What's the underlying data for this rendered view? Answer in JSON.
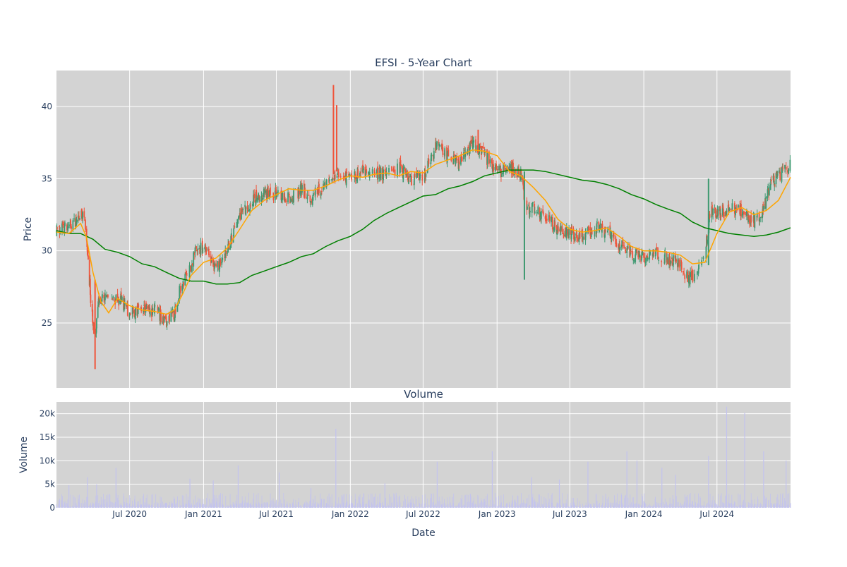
{
  "colors": {
    "plot_bg": "#d3d3d3",
    "grid": "#ffffff",
    "up": "#3d9970",
    "down": "#ef553b",
    "sma_short": "#ffa500",
    "sma_long": "#008000",
    "volume": "#c3c3ee",
    "text": "#2a3f5f"
  },
  "chart_data": [
    {
      "type": "candlestick",
      "title": "EFSI - 5-Year Chart",
      "ylabel": "Price",
      "ylim": [
        20.5,
        42.5
      ],
      "y_ticks": [
        25,
        30,
        35,
        40
      ],
      "grid": true,
      "x_range": [
        "2020-01-01",
        "2024-12-31"
      ],
      "x_ticks": [
        {
          "date": "2020-07-01",
          "label": "Jul 2020"
        },
        {
          "date": "2021-01-01",
          "label": "Jan 2021"
        },
        {
          "date": "2021-07-01",
          "label": "Jul 2021"
        },
        {
          "date": "2022-01-01",
          "label": "Jan 2022"
        },
        {
          "date": "2022-07-01",
          "label": "Jul 2022"
        },
        {
          "date": "2023-01-01",
          "label": "Jan 2023"
        },
        {
          "date": "2023-07-01",
          "label": "Jul 2023"
        },
        {
          "date": "2024-01-01",
          "label": "Jan 2024"
        },
        {
          "date": "2024-07-01",
          "label": "Jul 2024"
        }
      ],
      "sma_short": [
        [
          "2020-01-01",
          31.3
        ],
        [
          "2020-02-01",
          31.2
        ],
        [
          "2020-03-01",
          31.9
        ],
        [
          "2020-03-15",
          31.0
        ],
        [
          "2020-04-01",
          28.5
        ],
        [
          "2020-04-20",
          26.5
        ],
        [
          "2020-05-10",
          25.7
        ],
        [
          "2020-06-01",
          26.7
        ],
        [
          "2020-07-01",
          26.2
        ],
        [
          "2020-08-01",
          25.9
        ],
        [
          "2020-09-01",
          25.8
        ],
        [
          "2020-10-01",
          25.6
        ],
        [
          "2020-10-20",
          25.9
        ],
        [
          "2020-11-10",
          27.0
        ],
        [
          "2020-12-01",
          28.3
        ],
        [
          "2021-01-01",
          29.2
        ],
        [
          "2021-02-01",
          29.5
        ],
        [
          "2021-03-01",
          30.2
        ],
        [
          "2021-04-01",
          31.5
        ],
        [
          "2021-05-01",
          32.8
        ],
        [
          "2021-06-01",
          33.5
        ],
        [
          "2021-07-01",
          33.9
        ],
        [
          "2021-08-01",
          34.3
        ],
        [
          "2021-09-01",
          34.2
        ],
        [
          "2021-10-01",
          34.2
        ],
        [
          "2021-11-01",
          34.5
        ],
        [
          "2021-12-01",
          34.9
        ],
        [
          "2022-01-01",
          35.2
        ],
        [
          "2022-02-01",
          35.1
        ],
        [
          "2022-03-01",
          35.3
        ],
        [
          "2022-04-01",
          35.4
        ],
        [
          "2022-05-01",
          35.2
        ],
        [
          "2022-06-01",
          35.5
        ],
        [
          "2022-07-01",
          35.4
        ],
        [
          "2022-08-01",
          36.0
        ],
        [
          "2022-09-01",
          36.3
        ],
        [
          "2022-10-01",
          36.6
        ],
        [
          "2022-11-01",
          37.0
        ],
        [
          "2022-12-01",
          36.9
        ],
        [
          "2023-01-01",
          36.6
        ],
        [
          "2023-02-01",
          35.5
        ],
        [
          "2023-03-01",
          35.2
        ],
        [
          "2023-04-01",
          34.4
        ],
        [
          "2023-05-01",
          33.5
        ],
        [
          "2023-06-01",
          32.2
        ],
        [
          "2023-07-01",
          31.5
        ],
        [
          "2023-08-01",
          31.3
        ],
        [
          "2023-09-01",
          31.4
        ],
        [
          "2023-10-01",
          31.6
        ],
        [
          "2023-11-01",
          31.0
        ],
        [
          "2023-12-01",
          30.3
        ],
        [
          "2024-01-01",
          30.0
        ],
        [
          "2024-02-01",
          30.0
        ],
        [
          "2024-03-01",
          29.9
        ],
        [
          "2024-04-01",
          29.7
        ],
        [
          "2024-05-01",
          29.1
        ],
        [
          "2024-06-01",
          29.2
        ],
        [
          "2024-07-01",
          31.2
        ],
        [
          "2024-08-01",
          32.7
        ],
        [
          "2024-09-01",
          33.0
        ],
        [
          "2024-10-01",
          32.5
        ],
        [
          "2024-11-01",
          32.8
        ],
        [
          "2024-12-01",
          33.5
        ],
        [
          "2024-12-31",
          35.1
        ]
      ],
      "sma_long": [
        [
          "2020-01-01",
          31.4
        ],
        [
          "2020-02-01",
          31.2
        ],
        [
          "2020-03-01",
          31.2
        ],
        [
          "2020-04-01",
          30.8
        ],
        [
          "2020-05-01",
          30.1
        ],
        [
          "2020-06-01",
          29.9
        ],
        [
          "2020-07-01",
          29.6
        ],
        [
          "2020-08-01",
          29.1
        ],
        [
          "2020-09-01",
          28.9
        ],
        [
          "2020-10-01",
          28.5
        ],
        [
          "2020-11-01",
          28.1
        ],
        [
          "2020-12-01",
          27.9
        ],
        [
          "2021-01-01",
          27.9
        ],
        [
          "2021-02-01",
          27.7
        ],
        [
          "2021-03-01",
          27.7
        ],
        [
          "2021-04-01",
          27.8
        ],
        [
          "2021-05-01",
          28.3
        ],
        [
          "2021-06-01",
          28.6
        ],
        [
          "2021-07-01",
          28.9
        ],
        [
          "2021-08-01",
          29.2
        ],
        [
          "2021-09-01",
          29.6
        ],
        [
          "2021-10-01",
          29.8
        ],
        [
          "2021-11-01",
          30.3
        ],
        [
          "2021-12-01",
          30.7
        ],
        [
          "2022-01-01",
          31.0
        ],
        [
          "2022-02-01",
          31.5
        ],
        [
          "2022-03-01",
          32.1
        ],
        [
          "2022-04-01",
          32.6
        ],
        [
          "2022-05-01",
          33.0
        ],
        [
          "2022-06-01",
          33.4
        ],
        [
          "2022-07-01",
          33.8
        ],
        [
          "2022-08-01",
          33.9
        ],
        [
          "2022-09-01",
          34.3
        ],
        [
          "2022-10-01",
          34.5
        ],
        [
          "2022-11-01",
          34.8
        ],
        [
          "2022-12-01",
          35.2
        ],
        [
          "2023-01-01",
          35.4
        ],
        [
          "2023-02-01",
          35.6
        ],
        [
          "2023-03-01",
          35.6
        ],
        [
          "2023-04-01",
          35.6
        ],
        [
          "2023-05-01",
          35.5
        ],
        [
          "2023-06-01",
          35.3
        ],
        [
          "2023-07-01",
          35.1
        ],
        [
          "2023-08-01",
          34.9
        ],
        [
          "2023-09-01",
          34.8
        ],
        [
          "2023-10-01",
          34.6
        ],
        [
          "2023-11-01",
          34.3
        ],
        [
          "2023-12-01",
          33.9
        ],
        [
          "2024-01-01",
          33.6
        ],
        [
          "2024-02-01",
          33.2
        ],
        [
          "2024-03-01",
          32.9
        ],
        [
          "2024-04-01",
          32.6
        ],
        [
          "2024-05-01",
          32.0
        ],
        [
          "2024-06-01",
          31.6
        ],
        [
          "2024-07-01",
          31.4
        ],
        [
          "2024-08-01",
          31.2
        ],
        [
          "2024-09-01",
          31.1
        ],
        [
          "2024-10-01",
          31.0
        ],
        [
          "2024-11-01",
          31.1
        ],
        [
          "2024-12-01",
          31.3
        ],
        [
          "2024-12-31",
          31.6
        ]
      ],
      "price_anchors": [
        [
          "2020-01-01",
          31.3
        ],
        [
          "2020-02-10",
          31.8
        ],
        [
          "2020-03-01",
          32.7
        ],
        [
          "2020-03-12",
          32.2
        ],
        [
          "2020-03-20",
          29.0
        ],
        [
          "2020-03-28",
          26.0
        ],
        [
          "2020-04-05",
          24.0
        ],
        [
          "2020-04-15",
          26.5
        ],
        [
          "2020-05-01",
          26.6
        ],
        [
          "2020-05-20",
          26.7
        ],
        [
          "2020-06-10",
          26.6
        ],
        [
          "2020-07-01",
          25.7
        ],
        [
          "2020-08-01",
          25.9
        ],
        [
          "2020-09-01",
          25.8
        ],
        [
          "2020-10-01",
          25.3
        ],
        [
          "2020-10-20",
          25.7
        ],
        [
          "2020-11-05",
          27.5
        ],
        [
          "2020-11-20",
          28.2
        ],
        [
          "2020-12-10",
          29.8
        ],
        [
          "2021-01-01",
          30.3
        ],
        [
          "2021-02-01",
          28.8
        ],
        [
          "2021-03-01",
          30.0
        ],
        [
          "2021-04-01",
          32.5
        ],
        [
          "2021-05-01",
          33.5
        ],
        [
          "2021-06-01",
          34.0
        ],
        [
          "2021-07-01",
          34.0
        ],
        [
          "2021-08-01",
          33.6
        ],
        [
          "2021-09-01",
          34.2
        ],
        [
          "2021-10-01",
          33.7
        ],
        [
          "2021-11-01",
          34.8
        ],
        [
          "2021-11-20",
          35.2
        ],
        [
          "2021-12-15",
          35.0
        ],
        [
          "2022-01-01",
          35.3
        ],
        [
          "2022-02-01",
          35.5
        ],
        [
          "2022-03-01",
          35.4
        ],
        [
          "2022-04-01",
          35.2
        ],
        [
          "2022-05-01",
          35.8
        ],
        [
          "2022-06-01",
          35.0
        ],
        [
          "2022-07-01",
          35.0
        ],
        [
          "2022-08-01",
          37.2
        ],
        [
          "2022-09-01",
          36.5
        ],
        [
          "2022-10-01",
          36.0
        ],
        [
          "2022-11-01",
          37.5
        ],
        [
          "2022-12-01",
          36.6
        ],
        [
          "2023-01-01",
          35.5
        ],
        [
          "2023-02-01",
          35.7
        ],
        [
          "2023-03-01",
          35.3
        ],
        [
          "2023-03-15",
          33.0
        ],
        [
          "2023-04-01",
          33.0
        ],
        [
          "2023-05-01",
          32.4
        ],
        [
          "2023-06-01",
          31.5
        ],
        [
          "2023-07-01",
          31.2
        ],
        [
          "2023-08-01",
          31.0
        ],
        [
          "2023-09-01",
          31.6
        ],
        [
          "2023-10-01",
          31.3
        ],
        [
          "2023-11-01",
          30.5
        ],
        [
          "2023-12-01",
          29.8
        ],
        [
          "2024-01-01",
          29.5
        ],
        [
          "2024-02-01",
          29.8
        ],
        [
          "2024-03-01",
          29.5
        ],
        [
          "2024-04-01",
          29.0
        ],
        [
          "2024-04-20",
          28.0
        ],
        [
          "2024-05-10",
          28.5
        ],
        [
          "2024-06-01",
          29.6
        ],
        [
          "2024-06-15",
          33.0
        ],
        [
          "2024-07-01",
          32.5
        ],
        [
          "2024-08-01",
          33.1
        ],
        [
          "2024-09-01",
          32.8
        ],
        [
          "2024-10-01",
          32.0
        ],
        [
          "2024-10-20",
          32.6
        ],
        [
          "2024-11-10",
          34.5
        ],
        [
          "2024-12-01",
          35.2
        ],
        [
          "2024-12-31",
          36.0
        ]
      ],
      "spikes": [
        [
          "2020-04-06",
          21.8,
          28.0
        ],
        [
          "2021-11-20",
          35.3,
          41.5
        ],
        [
          "2021-11-28",
          35.5,
          40.1
        ],
        [
          "2023-03-10",
          28.0,
          35.5
        ],
        [
          "2024-06-10",
          29.0,
          35.0
        ],
        [
          "2022-11-15",
          36.8,
          38.4
        ]
      ]
    },
    {
      "type": "bar",
      "title": "Volume",
      "xlabel": "Date",
      "ylabel": "Volume",
      "ylim": [
        0,
        22500
      ],
      "y_ticks": [
        {
          "value": 0,
          "label": "0"
        },
        {
          "value": 5000,
          "label": "5k"
        },
        {
          "value": 10000,
          "label": "10k"
        },
        {
          "value": 15000,
          "label": "15k"
        },
        {
          "value": 20000,
          "label": "20k"
        }
      ],
      "spikes": [
        [
          "2020-02-01",
          4800
        ],
        [
          "2020-03-18",
          6500
        ],
        [
          "2020-04-10",
          5000
        ],
        [
          "2020-05-28",
          8500
        ],
        [
          "2020-11-28",
          6200
        ],
        [
          "2021-01-25",
          5800
        ],
        [
          "2021-03-28",
          9000
        ],
        [
          "2021-07-08",
          7500
        ],
        [
          "2021-09-25",
          4200
        ],
        [
          "2021-11-26",
          16800
        ],
        [
          "2022-03-28",
          5200
        ],
        [
          "2022-08-05",
          9800
        ],
        [
          "2022-12-20",
          12000
        ],
        [
          "2023-03-28",
          6500
        ],
        [
          "2023-06-05",
          6000
        ],
        [
          "2023-08-15",
          9800
        ],
        [
          "2023-11-20",
          12000
        ],
        [
          "2023-12-15",
          10000
        ],
        [
          "2024-02-15",
          8500
        ],
        [
          "2024-03-20",
          7000
        ],
        [
          "2024-06-10",
          11000
        ],
        [
          "2024-07-25",
          21500
        ],
        [
          "2024-09-08",
          20200
        ],
        [
          "2024-10-25",
          12000
        ],
        [
          "2024-12-20",
          10000
        ]
      ]
    }
  ]
}
